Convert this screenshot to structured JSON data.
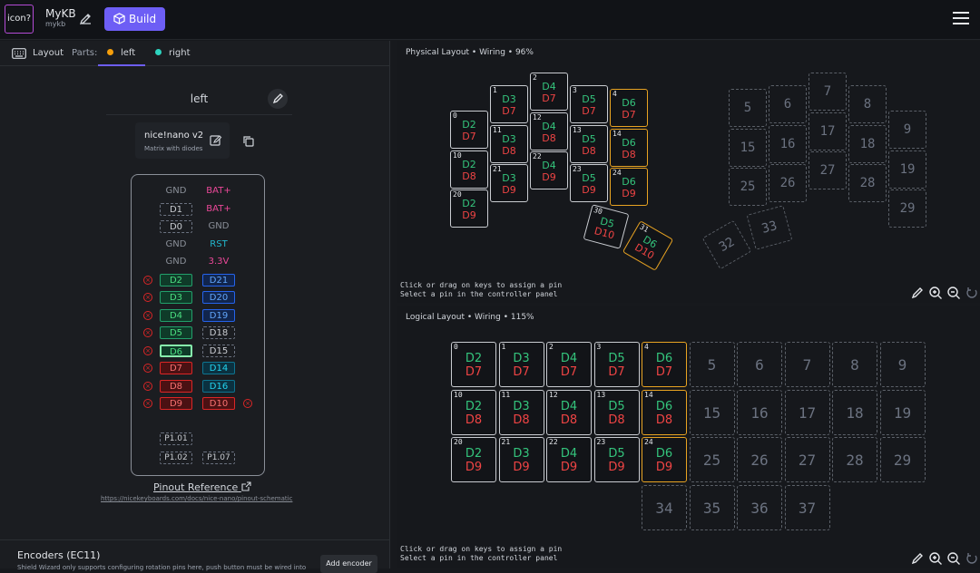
{
  "topbar": {
    "logo_text": "icon?",
    "project_name": "MyKB",
    "project_id": "mykb",
    "build_label": "Build"
  },
  "tabs": {
    "layout_label": "Layout",
    "parts_label": "Parts:",
    "left_label": "left",
    "right_label": "right",
    "left_color": "#f59e0b",
    "right_color": "#2dd4bf"
  },
  "side": {
    "title": "left"
  },
  "controller": {
    "name": "nice!nano v2",
    "subtitle": "Matrix with diodes"
  },
  "pins_left": [
    {
      "label": "GND",
      "style": "plain-gray"
    },
    {
      "label": "D1",
      "style": "dashed"
    },
    {
      "label": "D0",
      "style": "dashed"
    },
    {
      "label": "GND",
      "style": "plain-gray"
    },
    {
      "label": "GND",
      "style": "plain-gray"
    },
    {
      "label": "D2",
      "style": "green",
      "x": true
    },
    {
      "label": "D3",
      "style": "green",
      "x": true
    },
    {
      "label": "D4",
      "style": "green",
      "x": true
    },
    {
      "label": "D5",
      "style": "green",
      "x": true
    },
    {
      "label": "D6",
      "style": "green-active",
      "x": true
    },
    {
      "label": "D7",
      "style": "red",
      "x": true
    },
    {
      "label": "D8",
      "style": "red",
      "x": true
    },
    {
      "label": "D9",
      "style": "red",
      "x": true
    }
  ],
  "pins_right": [
    {
      "label": "BAT+",
      "style": "plain-pink"
    },
    {
      "label": "BAT+",
      "style": "plain-pink"
    },
    {
      "label": "GND",
      "style": "plain-gray"
    },
    {
      "label": "RST",
      "style": "plain-teal"
    },
    {
      "label": "3.3V",
      "style": "plain-pink"
    },
    {
      "label": "D21",
      "style": "blue"
    },
    {
      "label": "D20",
      "style": "blue"
    },
    {
      "label": "D19",
      "style": "blue"
    },
    {
      "label": "D18",
      "style": "dashed"
    },
    {
      "label": "D15",
      "style": "dashed"
    },
    {
      "label": "D14",
      "style": "teal"
    },
    {
      "label": "D16",
      "style": "teal"
    },
    {
      "label": "D10",
      "style": "red",
      "x": true
    }
  ],
  "pins_bottom": [
    "P1.01",
    "P1.02",
    "P1.07"
  ],
  "pinout": {
    "label": "Pinout Reference",
    "url": "https://nicekeyboards.com/docs/nice-nano/pinout-schematic"
  },
  "encoders": {
    "title": "Encoders (EC11)",
    "subtitle": "Shield Wizard only supports configuring rotation pins here, push button must be wired into",
    "add_label": "Add encoder"
  },
  "physical": {
    "title": "Physical Layout • Wiring • 96%"
  },
  "logical": {
    "title": "Logical Layout • Wiring • 115%"
  },
  "hint": {
    "line1": "Click or drag on keys to assign a pin",
    "line2": "Select a pin in the controller panel"
  },
  "keys": [
    {
      "n": "0",
      "c": "D2",
      "r": "D7"
    },
    {
      "n": "1",
      "c": "D3",
      "r": "D7"
    },
    {
      "n": "2",
      "c": "D4",
      "r": "D7"
    },
    {
      "n": "3",
      "c": "D5",
      "r": "D7"
    },
    {
      "n": "4",
      "c": "D6",
      "r": "D7"
    },
    {
      "n": "10",
      "c": "D2",
      "r": "D8"
    },
    {
      "n": "11",
      "c": "D3",
      "r": "D8"
    },
    {
      "n": "12",
      "c": "D4",
      "r": "D8"
    },
    {
      "n": "13",
      "c": "D5",
      "r": "D8"
    },
    {
      "n": "14",
      "c": "D6",
      "r": "D8"
    },
    {
      "n": "20",
      "c": "D2",
      "r": "D9"
    },
    {
      "n": "21",
      "c": "D3",
      "r": "D9"
    },
    {
      "n": "22",
      "c": "D4",
      "r": "D9"
    },
    {
      "n": "23",
      "c": "D5",
      "r": "D9"
    },
    {
      "n": "24",
      "c": "D6",
      "r": "D9"
    },
    {
      "n": "30",
      "c": "D5",
      "r": "D10"
    },
    {
      "n": "31",
      "c": "D6",
      "r": "D10"
    }
  ],
  "empty_keys": [
    "5",
    "6",
    "7",
    "8",
    "9",
    "15",
    "16",
    "17",
    "18",
    "19",
    "25",
    "26",
    "27",
    "28",
    "29",
    "32",
    "33"
  ]
}
